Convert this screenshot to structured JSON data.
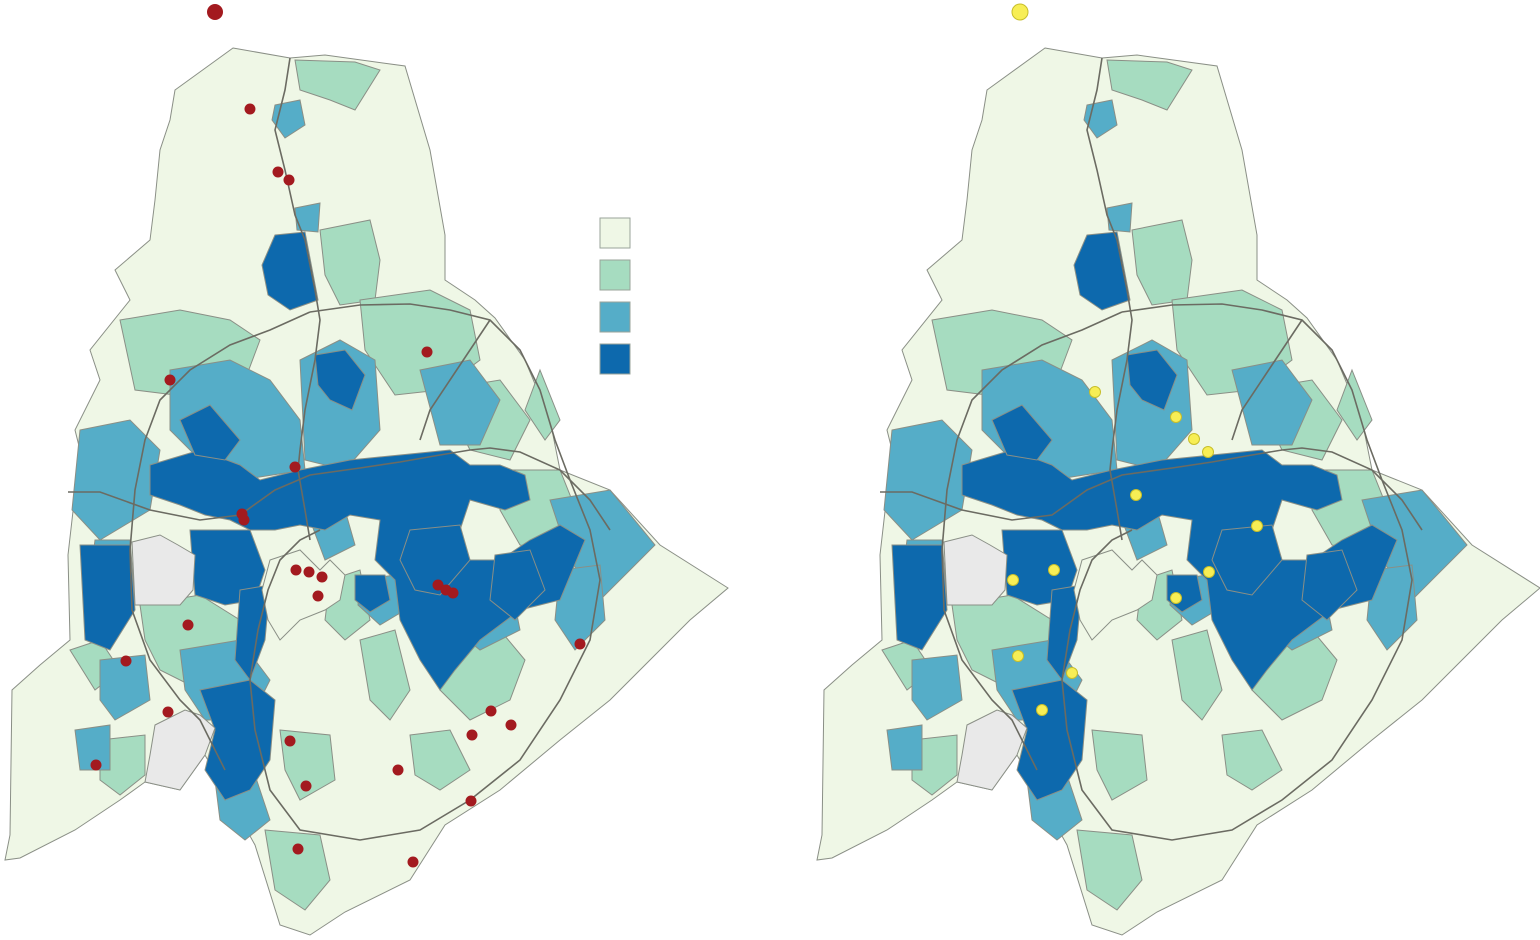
{
  "colors": {
    "class1": "#eff7e6",
    "class2": "#a6dcc0",
    "class3": "#55adc8",
    "class4": "#0d69ad",
    "nodata": "#e9e9e9",
    "road": "#6b6b62",
    "dot_left": "#a31a1f",
    "dot_right": "#f7ee55"
  },
  "maps": [
    {
      "name": "left-map",
      "marker_color": "dot_left",
      "marker_icon": "red-circle-icon"
    },
    {
      "name": "right-map",
      "marker_color": "dot_right",
      "marker_icon": "yellow-circle-icon"
    }
  ],
  "legend": {
    "classes": [
      "class1",
      "class2",
      "class3",
      "class4"
    ]
  }
}
